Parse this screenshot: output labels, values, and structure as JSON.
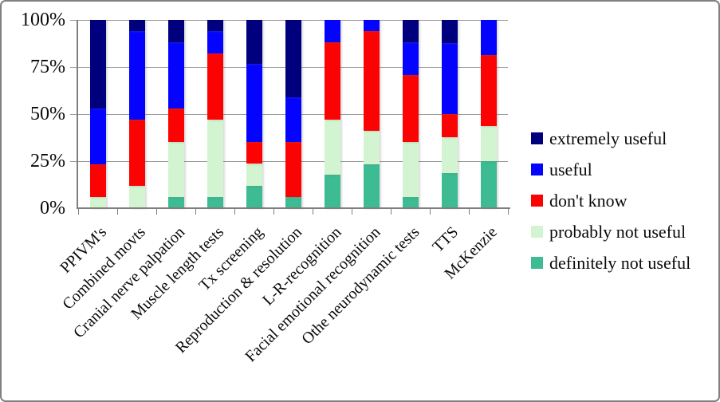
{
  "chart_data": {
    "type": "bar",
    "stacked": true,
    "orientation": "vertical",
    "unit": "percent",
    "title": "",
    "xlabel": "",
    "ylabel": "",
    "ylim": [
      0,
      100
    ],
    "grid": true,
    "legend_position": "right",
    "y_ticks": [
      {
        "label": "100%",
        "value": 100
      },
      {
        "label": "75%",
        "value": 75
      },
      {
        "label": "50%",
        "value": 50
      },
      {
        "label": "25%",
        "value": 25
      },
      {
        "label": "0%",
        "value": 0
      }
    ],
    "categories": [
      "PPIVM's",
      "Combined movts",
      "Cranial nerve palpation",
      "Muscle length tests",
      "Tx screening",
      "Reproduction & resolution",
      "L-R-recognition",
      "Facial emotional recognition",
      "Othe neurodynamic tests",
      "TTS",
      "McKenzie"
    ],
    "series": [
      {
        "name": "definitely not useful",
        "color": "#3dbb93",
        "values": [
          0,
          0,
          5.9,
          5.9,
          11.8,
          5.9,
          17.6,
          23.5,
          5.9,
          18.8,
          25.0
        ]
      },
      {
        "name": "probably not useful",
        "color": "#d2f4d0",
        "values": [
          5.9,
          11.8,
          29.4,
          41.2,
          11.8,
          0,
          29.4,
          17.6,
          29.4,
          18.8,
          18.8
        ]
      },
      {
        "name": "don't know",
        "color": "#fb0303",
        "values": [
          17.6,
          35.3,
          17.6,
          35.3,
          11.8,
          29.4,
          41.2,
          52.9,
          35.3,
          12.5,
          37.5
        ]
      },
      {
        "name": "useful",
        "color": "#0404fe",
        "values": [
          29.4,
          47.1,
          35.3,
          11.8,
          41.2,
          23.5,
          11.8,
          5.9,
          17.6,
          37.5,
          18.8
        ]
      },
      {
        "name": "extremely useful",
        "color": "#00007e",
        "values": [
          47.1,
          5.9,
          11.8,
          5.9,
          23.5,
          41.2,
          0,
          0,
          11.8,
          12.5,
          0
        ]
      }
    ],
    "legend_order_top_to_bottom": [
      "extremely useful",
      "useful",
      "don't know",
      "probably not useful",
      "definitely not useful"
    ],
    "colors": {
      "gridline": "#9a9a9a",
      "axis": "#7f7f7f",
      "frame_border": "#7f7f7f",
      "text": "#0a0a0a"
    }
  }
}
